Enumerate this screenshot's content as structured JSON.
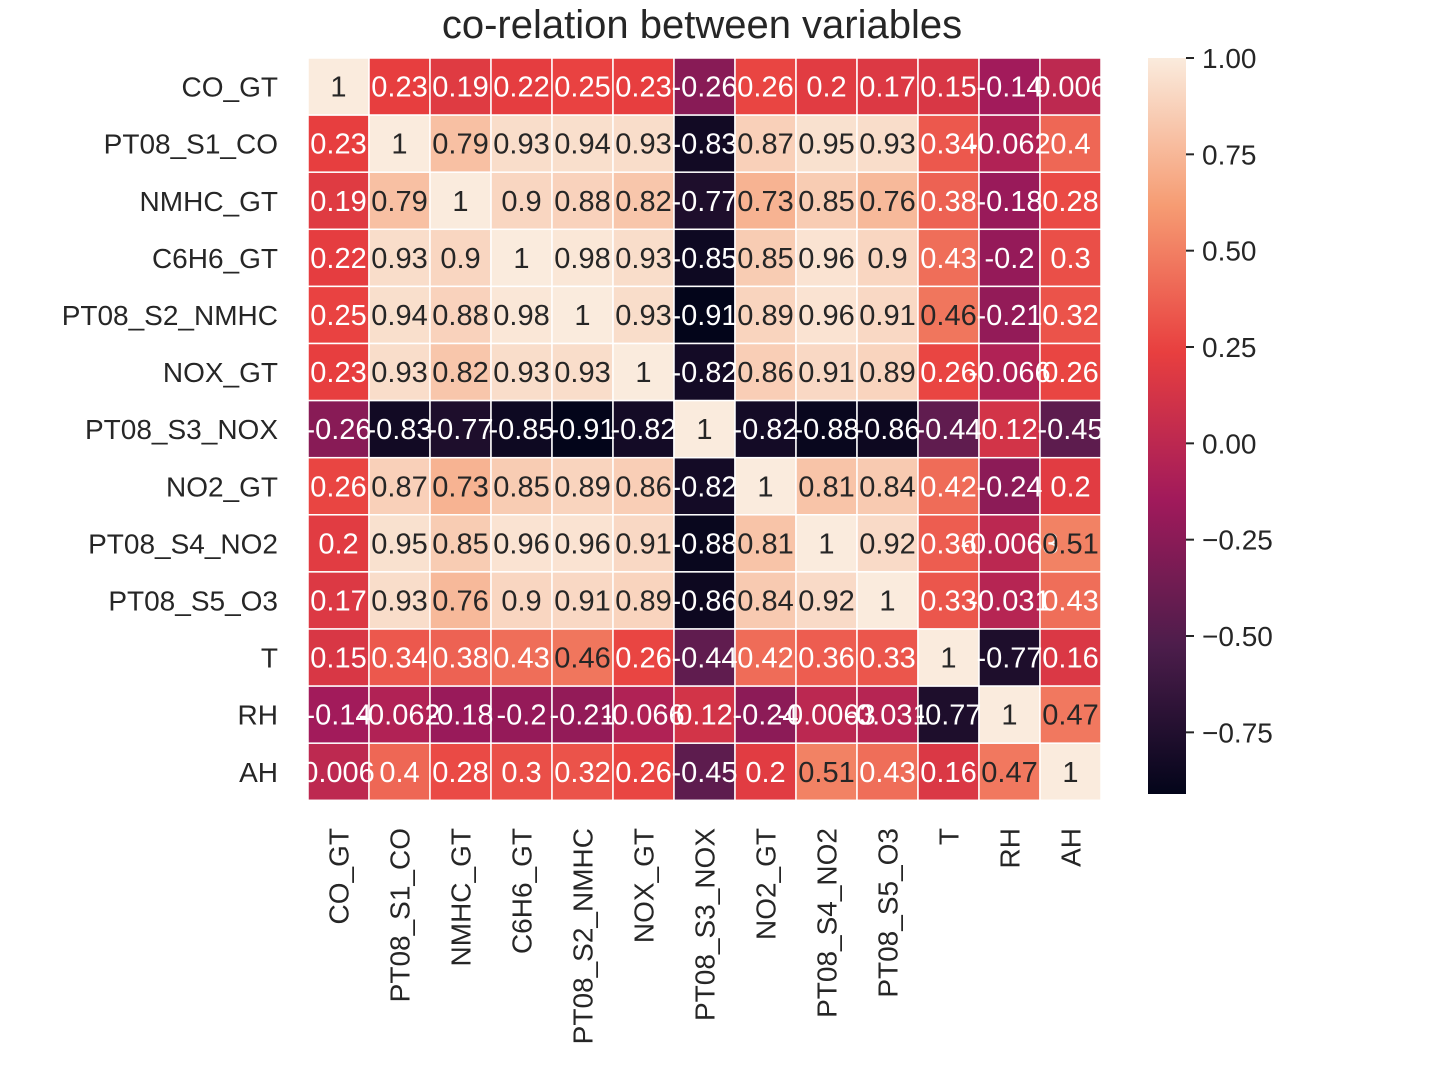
{
  "chart_data": {
    "type": "heatmap",
    "title": "co-relation between variables",
    "row_labels": [
      "CO_GT",
      "PT08_S1_CO",
      "NMHC_GT",
      "C6H6_GT",
      "PT08_S2_NMHC",
      "NOX_GT",
      "PT08_S3_NOX",
      "NO2_GT",
      "PT08_S4_NO2",
      "PT08_S5_O3",
      "T",
      "RH",
      "AH"
    ],
    "col_labels": [
      "CO_GT",
      "PT08_S1_CO",
      "NMHC_GT",
      "C6H6_GT",
      "PT08_S2_NMHC",
      "NOX_GT",
      "PT08_S3_NOX",
      "NO2_GT",
      "PT08_S4_NO2",
      "PT08_S5_O3",
      "T",
      "RH",
      "AH"
    ],
    "values": [
      [
        1,
        0.23,
        0.19,
        0.22,
        0.25,
        0.23,
        -0.26,
        0.26,
        0.2,
        0.17,
        0.15,
        -0.14,
        0.006
      ],
      [
        0.23,
        1,
        0.79,
        0.93,
        0.94,
        0.93,
        -0.83,
        0.87,
        0.95,
        0.93,
        0.34,
        -0.062,
        0.4
      ],
      [
        0.19,
        0.79,
        1,
        0.9,
        0.88,
        0.82,
        -0.77,
        0.73,
        0.85,
        0.76,
        0.38,
        -0.18,
        0.28
      ],
      [
        0.22,
        0.93,
        0.9,
        1,
        0.98,
        0.93,
        -0.85,
        0.85,
        0.96,
        0.9,
        0.43,
        -0.2,
        0.3
      ],
      [
        0.25,
        0.94,
        0.88,
        0.98,
        1,
        0.93,
        -0.91,
        0.89,
        0.96,
        0.91,
        0.46,
        -0.21,
        0.32
      ],
      [
        0.23,
        0.93,
        0.82,
        0.93,
        0.93,
        1,
        -0.82,
        0.86,
        0.91,
        0.89,
        0.26,
        -0.066,
        0.26
      ],
      [
        -0.26,
        -0.83,
        -0.77,
        -0.85,
        -0.91,
        -0.82,
        1,
        -0.82,
        -0.88,
        -0.86,
        -0.44,
        0.12,
        -0.45
      ],
      [
        0.26,
        0.87,
        0.73,
        0.85,
        0.89,
        0.86,
        -0.82,
        1,
        0.81,
        0.84,
        0.42,
        -0.24,
        0.2
      ],
      [
        0.2,
        0.95,
        0.85,
        0.96,
        0.96,
        0.91,
        -0.88,
        0.81,
        1,
        0.92,
        0.36,
        -0.0063,
        0.51
      ],
      [
        0.17,
        0.93,
        0.76,
        0.9,
        0.91,
        0.89,
        -0.86,
        0.84,
        0.92,
        1,
        0.33,
        -0.031,
        0.43
      ],
      [
        0.15,
        0.34,
        0.38,
        0.43,
        0.46,
        0.26,
        -0.44,
        0.42,
        0.36,
        0.33,
        1,
        -0.77,
        0.16
      ],
      [
        -0.14,
        -0.062,
        -0.18,
        -0.2,
        -0.21,
        -0.066,
        0.12,
        -0.24,
        -0.0063,
        -0.031,
        -0.77,
        1,
        0.47
      ],
      [
        0.006,
        0.4,
        0.28,
        0.3,
        0.32,
        0.26,
        -0.45,
        0.2,
        0.51,
        0.43,
        0.16,
        0.47,
        1
      ]
    ],
    "labels": [
      [
        "1",
        "0.23",
        "0.19",
        "0.22",
        "0.25",
        "0.23",
        "-0.26",
        "0.26",
        "0.2",
        "0.17",
        "0.15",
        "-0.14",
        "0.006"
      ],
      [
        "0.23",
        "1",
        "0.79",
        "0.93",
        "0.94",
        "0.93",
        "-0.83",
        "0.87",
        "0.95",
        "0.93",
        "0.34",
        "-0.062",
        "0.4"
      ],
      [
        "0.19",
        "0.79",
        "1",
        "0.9",
        "0.88",
        "0.82",
        "-0.77",
        "0.73",
        "0.85",
        "0.76",
        "0.38",
        "-0.18",
        "0.28"
      ],
      [
        "0.22",
        "0.93",
        "0.9",
        "1",
        "0.98",
        "0.93",
        "-0.85",
        "0.85",
        "0.96",
        "0.9",
        "0.43",
        "-0.2",
        "0.3"
      ],
      [
        "0.25",
        "0.94",
        "0.88",
        "0.98",
        "1",
        "0.93",
        "-0.91",
        "0.89",
        "0.96",
        "0.91",
        "0.46",
        "-0.21",
        "0.32"
      ],
      [
        "0.23",
        "0.93",
        "0.82",
        "0.93",
        "0.93",
        "1",
        "-0.82",
        "0.86",
        "0.91",
        "0.89",
        "0.26",
        "-0.066",
        "0.26"
      ],
      [
        "-0.26",
        "-0.83",
        "-0.77",
        "-0.85",
        "-0.91",
        "-0.82",
        "1",
        "-0.82",
        "-0.88",
        "-0.86",
        "-0.44",
        "0.12",
        "-0.45"
      ],
      [
        "0.26",
        "0.87",
        "0.73",
        "0.85",
        "0.89",
        "0.86",
        "-0.82",
        "1",
        "0.81",
        "0.84",
        "0.42",
        "-0.24",
        "0.2"
      ],
      [
        "0.2",
        "0.95",
        "0.85",
        "0.96",
        "0.96",
        "0.91",
        "-0.88",
        "0.81",
        "1",
        "0.92",
        "0.36",
        "-0.0063",
        "0.51"
      ],
      [
        "0.17",
        "0.93",
        "0.76",
        "0.9",
        "0.91",
        "0.89",
        "-0.86",
        "0.84",
        "0.92",
        "1",
        "0.33",
        "-0.031",
        "0.43"
      ],
      [
        "0.15",
        "0.34",
        "0.38",
        "0.43",
        "0.46",
        "0.26",
        "-0.44",
        "0.42",
        "0.36",
        "0.33",
        "1",
        "-0.77",
        "0.16"
      ],
      [
        "-0.14",
        "-0.062",
        "-0.18",
        "-0.2",
        "-0.21",
        "-0.066",
        "0.12",
        "-0.24",
        "-0.0063",
        "-0.031",
        "-0.77",
        "1",
        "0.47"
      ],
      [
        "0.006",
        "0.4",
        "0.28",
        "0.3",
        "0.32",
        "0.26",
        "-0.45",
        "0.2",
        "0.51",
        "0.43",
        "0.16",
        "0.47",
        "1"
      ]
    ],
    "colorbar": {
      "ticks": [
        "1.00",
        "0.75",
        "0.50",
        "0.25",
        "0.00",
        "−0.25",
        "−0.50",
        "−0.75"
      ],
      "tick_values": [
        1.0,
        0.75,
        0.5,
        0.25,
        0.0,
        -0.25,
        -0.5,
        -0.75
      ],
      "range": [
        -0.91,
        1.0
      ],
      "colormap": "rocket",
      "colors": [
        "#03051a",
        "#4c1d4b",
        "#a11a5b",
        "#e83f3f",
        "#f69c73",
        "#faebdd"
      ]
    },
    "grid_line_color": "#ffffff",
    "annotation_colors": {
      "on_dark": "#ffffff",
      "on_light": "#262626"
    }
  }
}
